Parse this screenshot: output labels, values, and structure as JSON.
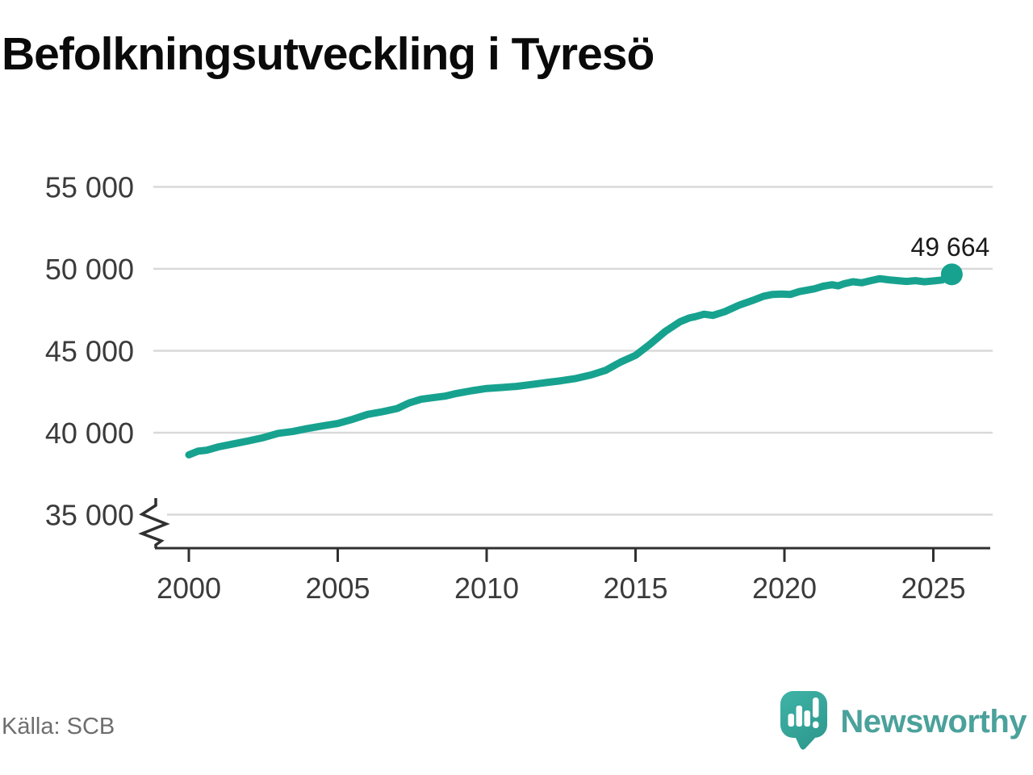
{
  "title": "Befolkningsutveckling i Tyresö",
  "source": "Källa: SCB",
  "logo": {
    "name": "Newsworthy"
  },
  "colors": {
    "line": "#17a28f",
    "grid": "#d9d9d9",
    "axis": "#303030",
    "tick_label": "#3b3b3b",
    "value_label": "#1a1a1a",
    "source_text": "#6e6e6e",
    "logo_text": "#4ba19b",
    "logo_bubble_top": "#3fb3a7",
    "logo_bubble_bottom": "#2f9a8f"
  },
  "chart_data": {
    "type": "line",
    "title": "Befolkningsutveckling i Tyresö",
    "xlabel": "",
    "ylabel": "",
    "xlim": [
      1998.8,
      2027
    ],
    "ylim": [
      33800,
      55000
    ],
    "axis_break_at_bottom": true,
    "grid": true,
    "legend": "none",
    "y_ticks": [
      {
        "value": 55000,
        "label": "55 000"
      },
      {
        "value": 50000,
        "label": "50 000"
      },
      {
        "value": 45000,
        "label": "45 000"
      },
      {
        "value": 40000,
        "label": "40 000"
      },
      {
        "value": 35000,
        "label": "35 000"
      }
    ],
    "x_ticks": [
      {
        "value": 2000,
        "label": "2000"
      },
      {
        "value": 2005,
        "label": "2005"
      },
      {
        "value": 2010,
        "label": "2010"
      },
      {
        "value": 2015,
        "label": "2015"
      },
      {
        "value": 2020,
        "label": "2020"
      },
      {
        "value": 2025,
        "label": "2025"
      }
    ],
    "series": [
      {
        "name": "Befolkning i Tyresö",
        "points": [
          [
            2000.0,
            38650
          ],
          [
            2000.3,
            38870
          ],
          [
            2000.6,
            38930
          ],
          [
            2001.0,
            39140
          ],
          [
            2001.5,
            39320
          ],
          [
            2002.0,
            39500
          ],
          [
            2002.5,
            39700
          ],
          [
            2003.0,
            39960
          ],
          [
            2003.5,
            40080
          ],
          [
            2004.0,
            40260
          ],
          [
            2004.5,
            40420
          ],
          [
            2005.0,
            40560
          ],
          [
            2005.5,
            40820
          ],
          [
            2006.0,
            41120
          ],
          [
            2006.5,
            41280
          ],
          [
            2007.0,
            41480
          ],
          [
            2007.4,
            41820
          ],
          [
            2007.8,
            42040
          ],
          [
            2008.2,
            42140
          ],
          [
            2008.6,
            42230
          ],
          [
            2009.0,
            42400
          ],
          [
            2009.5,
            42560
          ],
          [
            2010.0,
            42700
          ],
          [
            2010.5,
            42760
          ],
          [
            2011.0,
            42830
          ],
          [
            2011.5,
            42940
          ],
          [
            2012.0,
            43060
          ],
          [
            2012.5,
            43170
          ],
          [
            2013.0,
            43310
          ],
          [
            2013.5,
            43520
          ],
          [
            2014.0,
            43810
          ],
          [
            2014.5,
            44310
          ],
          [
            2015.0,
            44720
          ],
          [
            2015.5,
            45420
          ],
          [
            2016.0,
            46180
          ],
          [
            2016.5,
            46780
          ],
          [
            2016.8,
            47000
          ],
          [
            2017.0,
            47080
          ],
          [
            2017.3,
            47230
          ],
          [
            2017.6,
            47160
          ],
          [
            2018.0,
            47390
          ],
          [
            2018.5,
            47800
          ],
          [
            2019.0,
            48120
          ],
          [
            2019.3,
            48330
          ],
          [
            2019.6,
            48440
          ],
          [
            2019.9,
            48460
          ],
          [
            2020.2,
            48440
          ],
          [
            2020.5,
            48610
          ],
          [
            2021.0,
            48780
          ],
          [
            2021.3,
            48940
          ],
          [
            2021.6,
            49030
          ],
          [
            2021.8,
            48960
          ],
          [
            2022.0,
            49090
          ],
          [
            2022.3,
            49210
          ],
          [
            2022.6,
            49150
          ],
          [
            2022.9,
            49280
          ],
          [
            2023.2,
            49400
          ],
          [
            2023.5,
            49330
          ],
          [
            2023.8,
            49280
          ],
          [
            2024.1,
            49230
          ],
          [
            2024.4,
            49280
          ],
          [
            2024.7,
            49210
          ],
          [
            2025.0,
            49260
          ],
          [
            2025.3,
            49320
          ],
          [
            2025.62,
            49664
          ]
        ]
      }
    ],
    "end_label": "49 664",
    "end_value": 49664
  }
}
